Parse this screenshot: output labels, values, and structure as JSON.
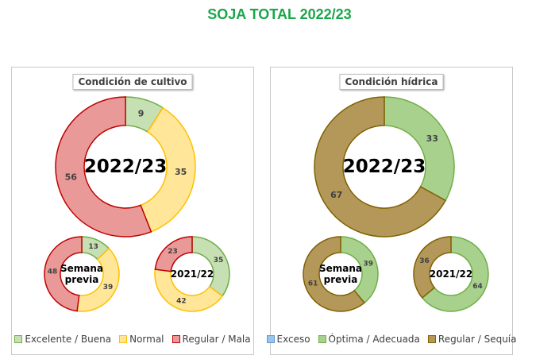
{
  "title": "SOJA TOTAL 2022/23",
  "chart_data": [
    {
      "type": "donut",
      "title": "Condición de cultivo",
      "legend": [
        {
          "name": "Excelente / Buena",
          "fill": "#c6e0b4",
          "stroke": "#70ad47"
        },
        {
          "name": "Normal",
          "fill": "#ffe699",
          "stroke": "#ffc000"
        },
        {
          "name": "Regular / Mala",
          "fill": "#ea9999",
          "stroke": "#c00000"
        }
      ],
      "donuts": [
        {
          "center_label": "2022/23",
          "values": [
            9,
            35,
            56
          ]
        },
        {
          "center_label": "Semana previa",
          "values": [
            13,
            39,
            48
          ]
        },
        {
          "center_label": "2021/22",
          "values": [
            35,
            42,
            23
          ]
        }
      ]
    },
    {
      "type": "donut",
      "title": "Condición hídrica",
      "legend": [
        {
          "name": "Exceso",
          "fill": "#9dc3e6",
          "stroke": "#5b9bd5"
        },
        {
          "name": "Óptima / Adecuada",
          "fill": "#a9d18e",
          "stroke": "#70ad47"
        },
        {
          "name": "Regular / Sequía",
          "fill": "#b4985a",
          "stroke": "#806000"
        }
      ],
      "donuts": [
        {
          "center_label": "2022/23",
          "values": [
            0,
            33,
            67
          ]
        },
        {
          "center_label": "Semana previa",
          "values": [
            0,
            39,
            61
          ]
        },
        {
          "center_label": "2021/22",
          "values": [
            0,
            64,
            36
          ]
        }
      ]
    }
  ]
}
